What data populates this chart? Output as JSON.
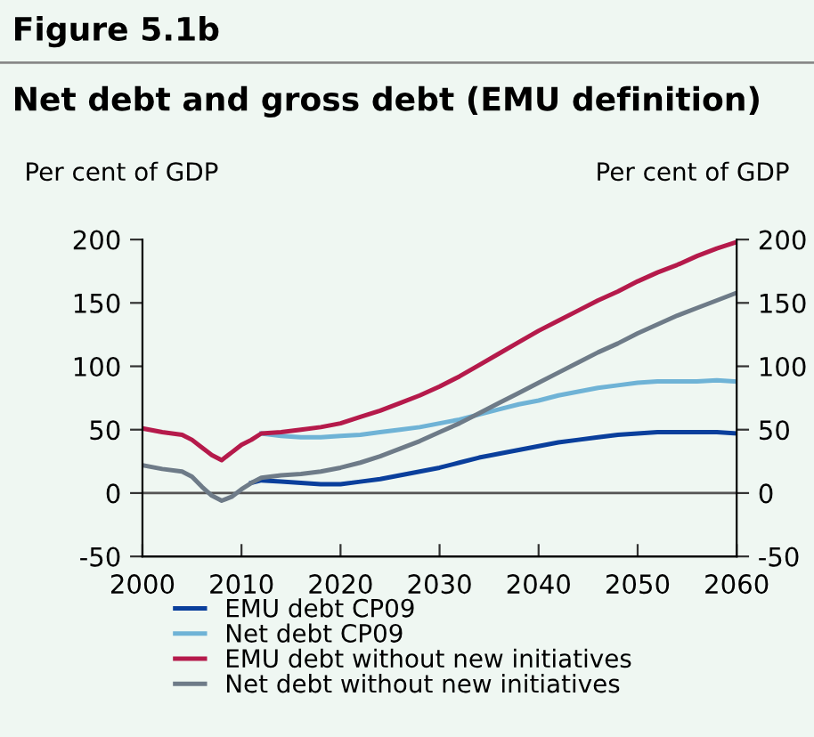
{
  "chart_data": {
    "type": "line",
    "title": "Net debt and gross debt (EMU definition)",
    "annotations": [
      "Figure 5.1b"
    ],
    "ylabel": "Per cent of GDP",
    "y2label": "Per cent of GDP",
    "x": [
      2000,
      2002,
      2004,
      2005,
      2006,
      2007,
      2008,
      2009,
      2010,
      2011,
      2012,
      2014,
      2016,
      2018,
      2020,
      2022,
      2024,
      2026,
      2028,
      2030,
      2032,
      2034,
      2036,
      2038,
      2040,
      2042,
      2044,
      2046,
      2048,
      2050,
      2052,
      2054,
      2056,
      2058,
      2060
    ],
    "series": [
      {
        "name": "EMU debt CP09",
        "color": "#0a3f9c",
        "values": [
          null,
          null,
          null,
          null,
          null,
          null,
          null,
          null,
          null,
          8,
          10,
          9,
          8,
          7,
          7,
          9,
          11,
          14,
          17,
          20,
          24,
          28,
          31,
          34,
          37,
          40,
          42,
          44,
          46,
          47,
          48,
          48,
          48,
          48,
          47
        ]
      },
      {
        "name": "Net debt CP09",
        "color": "#6fb3d6",
        "values": [
          null,
          null,
          null,
          null,
          null,
          null,
          null,
          null,
          null,
          null,
          47,
          45,
          44,
          44,
          45,
          46,
          48,
          50,
          52,
          55,
          58,
          62,
          66,
          70,
          73,
          77,
          80,
          83,
          85,
          87,
          88,
          88,
          88,
          89,
          88
        ]
      },
      {
        "name": "EMU debt without new initiatives",
        "color": "#b51a4b",
        "values": [
          51,
          48,
          46,
          42,
          36,
          30,
          26,
          32,
          38,
          42,
          47,
          48,
          50,
          52,
          55,
          60,
          65,
          71,
          77,
          84,
          92,
          101,
          110,
          119,
          128,
          136,
          144,
          152,
          159,
          167,
          174,
          180,
          187,
          193,
          198
        ]
      },
      {
        "name": "Net debt without new initiatives",
        "color": "#6e7b88",
        "values": [
          22,
          19,
          17,
          13,
          5,
          -2,
          -6,
          -3,
          3,
          8,
          12,
          14,
          15,
          17,
          20,
          24,
          29,
          35,
          41,
          48,
          55,
          63,
          71,
          79,
          87,
          95,
          103,
          111,
          118,
          126,
          133,
          140,
          146,
          152,
          158
        ]
      }
    ],
    "xlim": [
      2000,
      2060
    ],
    "xticks": [
      2000,
      2010,
      2020,
      2030,
      2040,
      2050,
      2060
    ],
    "ylim": [
      -50,
      200
    ],
    "yticks": [
      -50,
      0,
      50,
      100,
      150,
      200
    ],
    "y2lim": [
      -50,
      200
    ],
    "y2ticks": [
      -50,
      0,
      50,
      100,
      150,
      200
    ],
    "ref_lines": [
      {
        "axis": "y",
        "value": 0,
        "color": "#555555"
      }
    ],
    "grid": false,
    "legend": "bottom",
    "line_style": "solid",
    "marker": "none"
  }
}
